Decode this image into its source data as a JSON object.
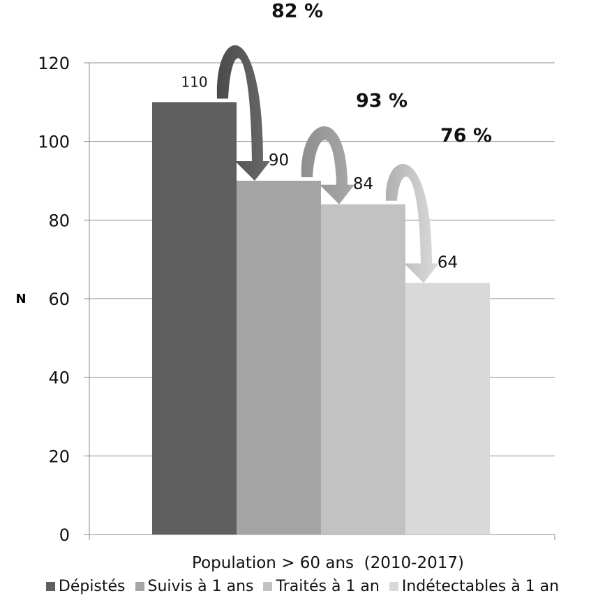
{
  "chart_data": {
    "type": "bar",
    "xlabel": "Population > 60 ans  (2010-2017)",
    "ylabel": "N",
    "ylim": [
      0,
      120
    ],
    "yticks": [
      0,
      20,
      40,
      60,
      80,
      100,
      120
    ],
    "grid": true,
    "legend_position": "bottom",
    "series": [
      {
        "name": "Dépistés",
        "value": 110,
        "label": "110",
        "color": "#5f5f5f"
      },
      {
        "name": "Suivis à 1 ans",
        "value": 90,
        "label": "90",
        "color": "#a5a5a5"
      },
      {
        "name": "Traités à 1 an",
        "value": 84,
        "label": "84",
        "color": "#c2c2c2"
      },
      {
        "name": "Indétectables à 1 an",
        "value": 64,
        "label": "64",
        "color": "#d9d9d9"
      }
    ],
    "annotations": [
      {
        "text": "82 %",
        "from": "Dépistés",
        "to": "Suivis à 1 ans",
        "color": "#5a5a5a"
      },
      {
        "text": "93 %",
        "from": "Suivis à 1 ans",
        "to": "Traités à 1 an",
        "color": "#9a9a9a"
      },
      {
        "text": "76 %",
        "from": "Traités à 1 an",
        "to": "Indétectables à 1 an",
        "color": "#bdbdbd"
      }
    ]
  }
}
